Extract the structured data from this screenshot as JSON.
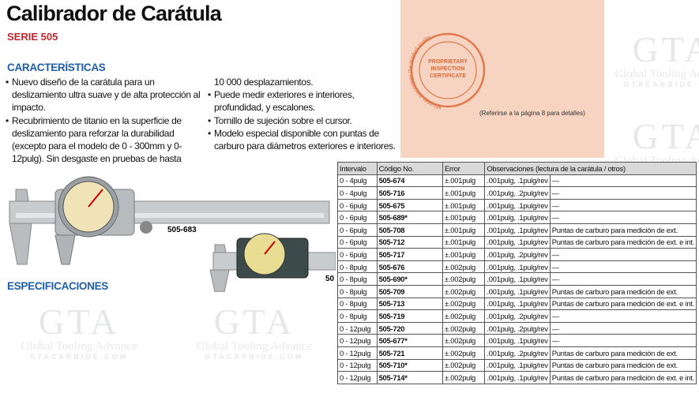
{
  "header": {
    "title": "Calibrador de Carátula",
    "series": "SERIE 505"
  },
  "features": {
    "heading": "CARACTERÍSTICAS",
    "left": [
      "Nuevo diseño de la carátula para un deslizamiento ultra suave y de alta protección al impacto.",
      "Recubrimiento de titanio en la superficie de deslizamiento para reforzar la durabilidad (excepto para el modelo de 0 - 300mm y 0-12pulg). Sin desgaste en pruebas de hasta"
    ],
    "continuation": "10 000 desplazamientos.",
    "right": [
      "Puede medir exteriores e  interiores, profundidad, y escalones.",
      "Tornillo de sujeción sobre el cursor.",
      "Modelo especial disponible con puntas de carburo para diámetros exteriores e interiores."
    ]
  },
  "images": {
    "label_1": "505-683",
    "label_2": "50"
  },
  "specs_heading": "ESPECIFICACIONES",
  "certificate": {
    "ring": "Mitutoyo guarantees the product quality",
    "lines": [
      "PROPRIETARY",
      "INSPECTION",
      "CERTIFICATE"
    ],
    "note": "(Referirse a la página 8 para detalles)"
  },
  "watermark": {
    "logo": "GTA",
    "name": "Global Tooling Advance",
    "site": "GTACARBIDE.COM"
  },
  "table": {
    "header": [
      "Intervalo",
      "Código No.",
      "Error",
      "Observaciones (lectura de la carátula / otros)"
    ],
    "rows": [
      [
        "0 - 4pulg",
        "505-674",
        "±.001pulg",
        ".001pulg, .1pulg/rev",
        "—"
      ],
      [
        "0 - 4pulg",
        "505-716",
        "±.001pulg",
        ".001pulg, .2pulg/rev",
        "—"
      ],
      [
        "0 - 6pulg",
        "505-675",
        "±.001pulg",
        ".001pulg, .1pulg/rev",
        "—"
      ],
      [
        "0 - 6pulg",
        "505-689*",
        "±.001pulg",
        ".001pulg, .1pulg/rev",
        "—"
      ],
      [
        "0 - 6pulg",
        "505-708",
        "±.001pulg",
        ".001pulg, .1pulg/rev",
        "Puntas de carburo para medición de ext."
      ],
      [
        "0 - 6pulg",
        "505-712",
        "±.001pulg",
        ".001pulg, .1pulg/rev",
        "Puntas de carburo para medición de ext. e int."
      ],
      [
        "0 - 6pulg",
        "505-717",
        "±.001pulg",
        ".001pulg, .2pulg/rev",
        "—"
      ],
      [
        "0 - 8pulg",
        "505-676",
        "±.002pulg",
        ".001pulg, .1pulg/rev",
        "—"
      ],
      [
        "0 - 8pulg",
        "505-690*",
        "±.002pulg",
        ".001pulg, .1pulg/rev",
        "—"
      ],
      [
        "0 - 8pulg",
        "505-709",
        "±.002pulg",
        ".001pulg, .1pulg/rev",
        "Puntas de carburo para medición de ext."
      ],
      [
        "0 - 8pulg",
        "505-713",
        "±.002pulg",
        ".001pulg, .1pulg/rev",
        "Puntas de carburo para medición de ext. e int."
      ],
      [
        "0 - 8pulg",
        "505-719",
        "±.002pulg",
        ".001pulg, .2pulg/rev",
        "—"
      ],
      [
        "0 - 12pulg",
        "505-720",
        "±.002pulg",
        ".001pulg, .2pulg/rev",
        "—"
      ],
      [
        "0 - 12pulg",
        "505-677*",
        "±.002pulg",
        ".001pulg, .1pulg/rev",
        "—"
      ],
      [
        "0 - 12pulg",
        "505-721",
        "±.002pulg",
        ".001pulg, .2pulg/rev",
        "Puntas de carburo para medición de ext."
      ],
      [
        "0 - 12pulg",
        "505-710*",
        "±.002pulg",
        ".001pulg, .1pulg/rev",
        "Puntas de carburo para medición de ext."
      ],
      [
        "0 - 12pulg",
        "505-714*",
        "±.002pulg",
        ".001pulg, .1pulg/rev",
        "Puntas de carburo para medición de ext. e int."
      ]
    ]
  }
}
